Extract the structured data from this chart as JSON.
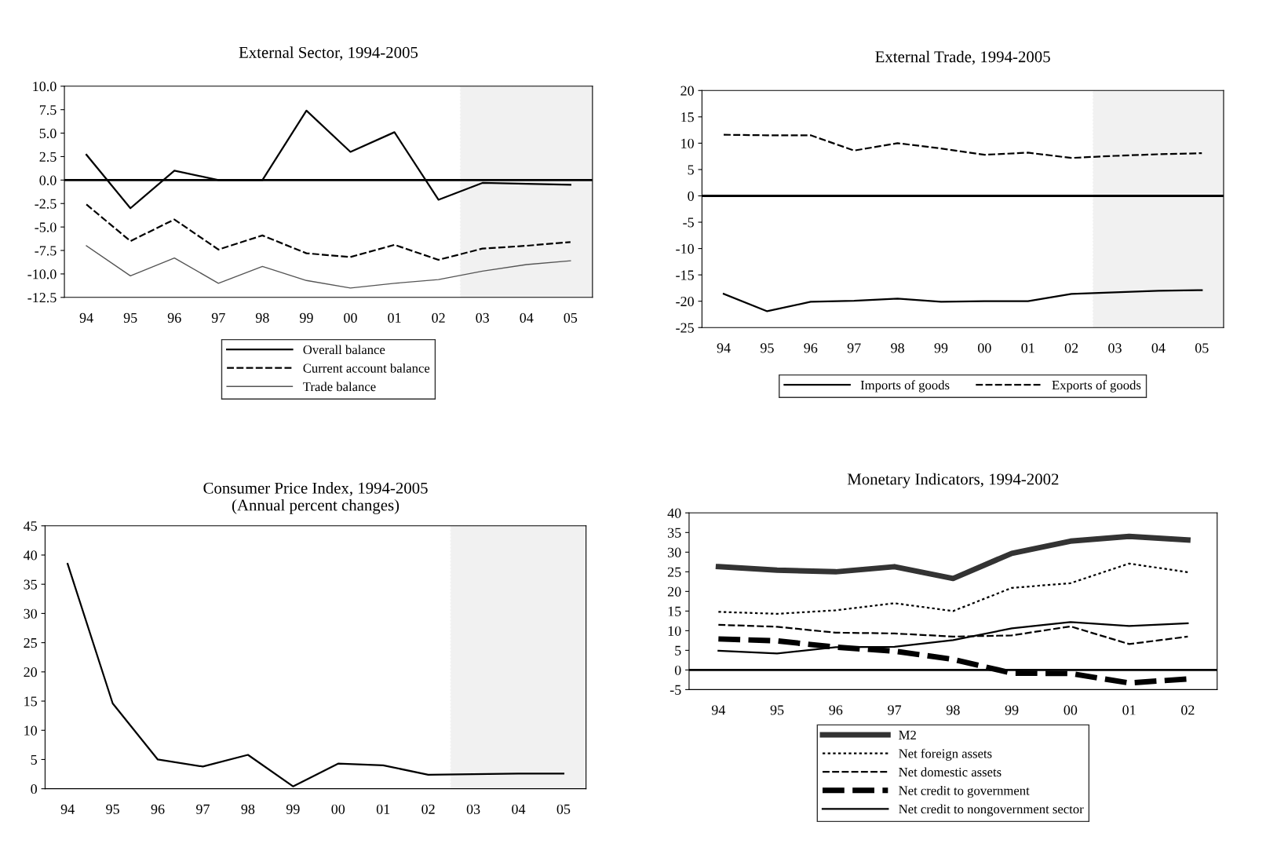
{
  "chart_data": [
    {
      "type": "line",
      "title": "External Sector, 1994-2005",
      "categories": [
        "94",
        "95",
        "96",
        "97",
        "98",
        "99",
        "00",
        "01",
        "02",
        "03",
        "04",
        "05"
      ],
      "ylim": [
        -12.5,
        10.0
      ],
      "yticks": [
        {
          "value": -12.5,
          "label": "-12.5"
        },
        {
          "value": -10,
          "label": "-10.0"
        },
        {
          "value": -7.5,
          "label": "-7.5"
        },
        {
          "value": -5,
          "label": "-5.0"
        },
        {
          "value": -2.5,
          "label": "-2.5"
        },
        {
          "value": 0,
          "label": "0.0"
        },
        {
          "value": 2.5,
          "label": "2.5"
        },
        {
          "value": 5,
          "label": "5.0"
        },
        {
          "value": 7.5,
          "label": "7.5"
        },
        {
          "value": 10,
          "label": "10.0"
        }
      ],
      "grid": false,
      "legend": "bottom",
      "marker": "none",
      "ref_lines": [
        {
          "axis": "y",
          "value": 0,
          "color": "#000000",
          "line_style": "solid"
        }
      ],
      "bands": [
        {
          "axis": "x",
          "from": "03",
          "to": "05",
          "color": "#555555"
        }
      ],
      "series": [
        {
          "name": "Overall balance",
          "color": "#000000",
          "line_style": "solid",
          "values": [
            2.7,
            -3.0,
            1.0,
            0.0,
            0.0,
            7.4,
            3.0,
            5.1,
            -2.1,
            -0.3,
            -0.4,
            -0.5
          ]
        },
        {
          "name": "Current account balance",
          "color": "#000000",
          "line_style": "dashed",
          "values": [
            -2.6,
            -6.5,
            -4.2,
            -7.4,
            -5.9,
            -7.8,
            -8.2,
            -6.9,
            -8.5,
            -7.3,
            -7.0,
            -6.6
          ]
        },
        {
          "name": "Trade balance",
          "color": "#555555",
          "line_style": "solid",
          "values": [
            -7.0,
            -10.2,
            -8.3,
            -11.0,
            -9.2,
            -10.7,
            -11.5,
            -11.0,
            -10.6,
            -9.7,
            -9.0,
            -8.6
          ]
        }
      ]
    },
    {
      "type": "line",
      "title": "External Trade, 1994-2005",
      "categories": [
        "94",
        "95",
        "96",
        "97",
        "98",
        "99",
        "00",
        "01",
        "02",
        "03",
        "04",
        "05"
      ],
      "ylim": [
        -25,
        20
      ],
      "yticks": [
        -25,
        -20,
        -15,
        -10,
        -5,
        0,
        5,
        10,
        15,
        20
      ],
      "grid": false,
      "legend": "bottom",
      "marker": "none",
      "ref_lines": [
        {
          "axis": "y",
          "value": 0,
          "color": "#000000",
          "line_style": "solid"
        }
      ],
      "bands": [
        {
          "axis": "x",
          "from": "03",
          "to": "05",
          "color": "#555555"
        }
      ],
      "series": [
        {
          "name": "Imports of goods",
          "color": "#000000",
          "line_style": "solid",
          "values": [
            -18.6,
            -21.9,
            -20.1,
            -19.9,
            -19.5,
            -20.1,
            -20.0,
            -20.0,
            -18.6,
            -18.3,
            -18.0,
            -17.9
          ]
        },
        {
          "name": "Exports of goods",
          "color": "#000000",
          "line_style": "dashed",
          "values": [
            11.6,
            11.5,
            11.5,
            8.6,
            10.0,
            9.0,
            7.8,
            8.2,
            7.2,
            7.6,
            7.9,
            8.1
          ]
        }
      ]
    },
    {
      "type": "line",
      "title": "Consumer Price Index, 1994-2005",
      "subtitle": "(Annual percent changes)",
      "categories": [
        "94",
        "95",
        "96",
        "97",
        "98",
        "99",
        "00",
        "01",
        "02",
        "03",
        "04",
        "05"
      ],
      "ylim": [
        0,
        45
      ],
      "yticks": [
        0,
        5,
        10,
        15,
        20,
        25,
        30,
        35,
        40,
        45
      ],
      "grid": false,
      "marker": "none",
      "bands": [
        {
          "axis": "x",
          "from": "03",
          "to": "05",
          "color": "#555555"
        }
      ],
      "series": [
        {
          "color": "#000000",
          "line_style": "solid",
          "values": [
            38.5,
            14.6,
            5.0,
            3.8,
            5.8,
            0.4,
            4.3,
            4.0,
            2.4,
            2.5,
            2.6,
            2.6
          ]
        }
      ]
    },
    {
      "type": "line",
      "title": "Monetary Indicators, 1994-2002",
      "categories": [
        "94",
        "95",
        "96",
        "97",
        "98",
        "99",
        "00",
        "01",
        "02"
      ],
      "ylim": [
        -5,
        40
      ],
      "yticks": [
        -5,
        0,
        5,
        10,
        15,
        20,
        25,
        30,
        35,
        40
      ],
      "grid": false,
      "legend": "bottom",
      "marker": "none",
      "ref_lines": [
        {
          "axis": "y",
          "value": 0,
          "color": "#000000",
          "line_style": "solid"
        }
      ],
      "series": [
        {
          "name": "M2",
          "color": "#333333",
          "line_style": "solid",
          "values": [
            26.3,
            25.4,
            25.0,
            26.3,
            23.3,
            29.7,
            32.8,
            34.0,
            33.1
          ]
        },
        {
          "name": "Net foreign assets",
          "color": "#000000",
          "line_style": "dotted",
          "values": [
            14.8,
            14.3,
            15.2,
            17.0,
            15.0,
            20.9,
            22.1,
            27.1,
            24.9
          ]
        },
        {
          "name": "Net domestic assets",
          "color": "#000000",
          "line_style": "dashed",
          "values": [
            11.5,
            11.0,
            9.5,
            9.3,
            8.5,
            8.8,
            11.1,
            6.6,
            8.5
          ]
        },
        {
          "name": "Net credit to government",
          "color": "#000000",
          "line_style": "dashed",
          "values": [
            7.9,
            7.4,
            5.8,
            4.8,
            2.7,
            -0.8,
            -0.9,
            -3.3,
            -2.3
          ]
        },
        {
          "name": "Net credit to nongovernment sector",
          "color": "#000000",
          "line_style": "solid",
          "values": [
            4.9,
            4.2,
            5.8,
            5.9,
            7.6,
            10.6,
            12.2,
            11.2,
            11.9
          ]
        }
      ]
    }
  ]
}
